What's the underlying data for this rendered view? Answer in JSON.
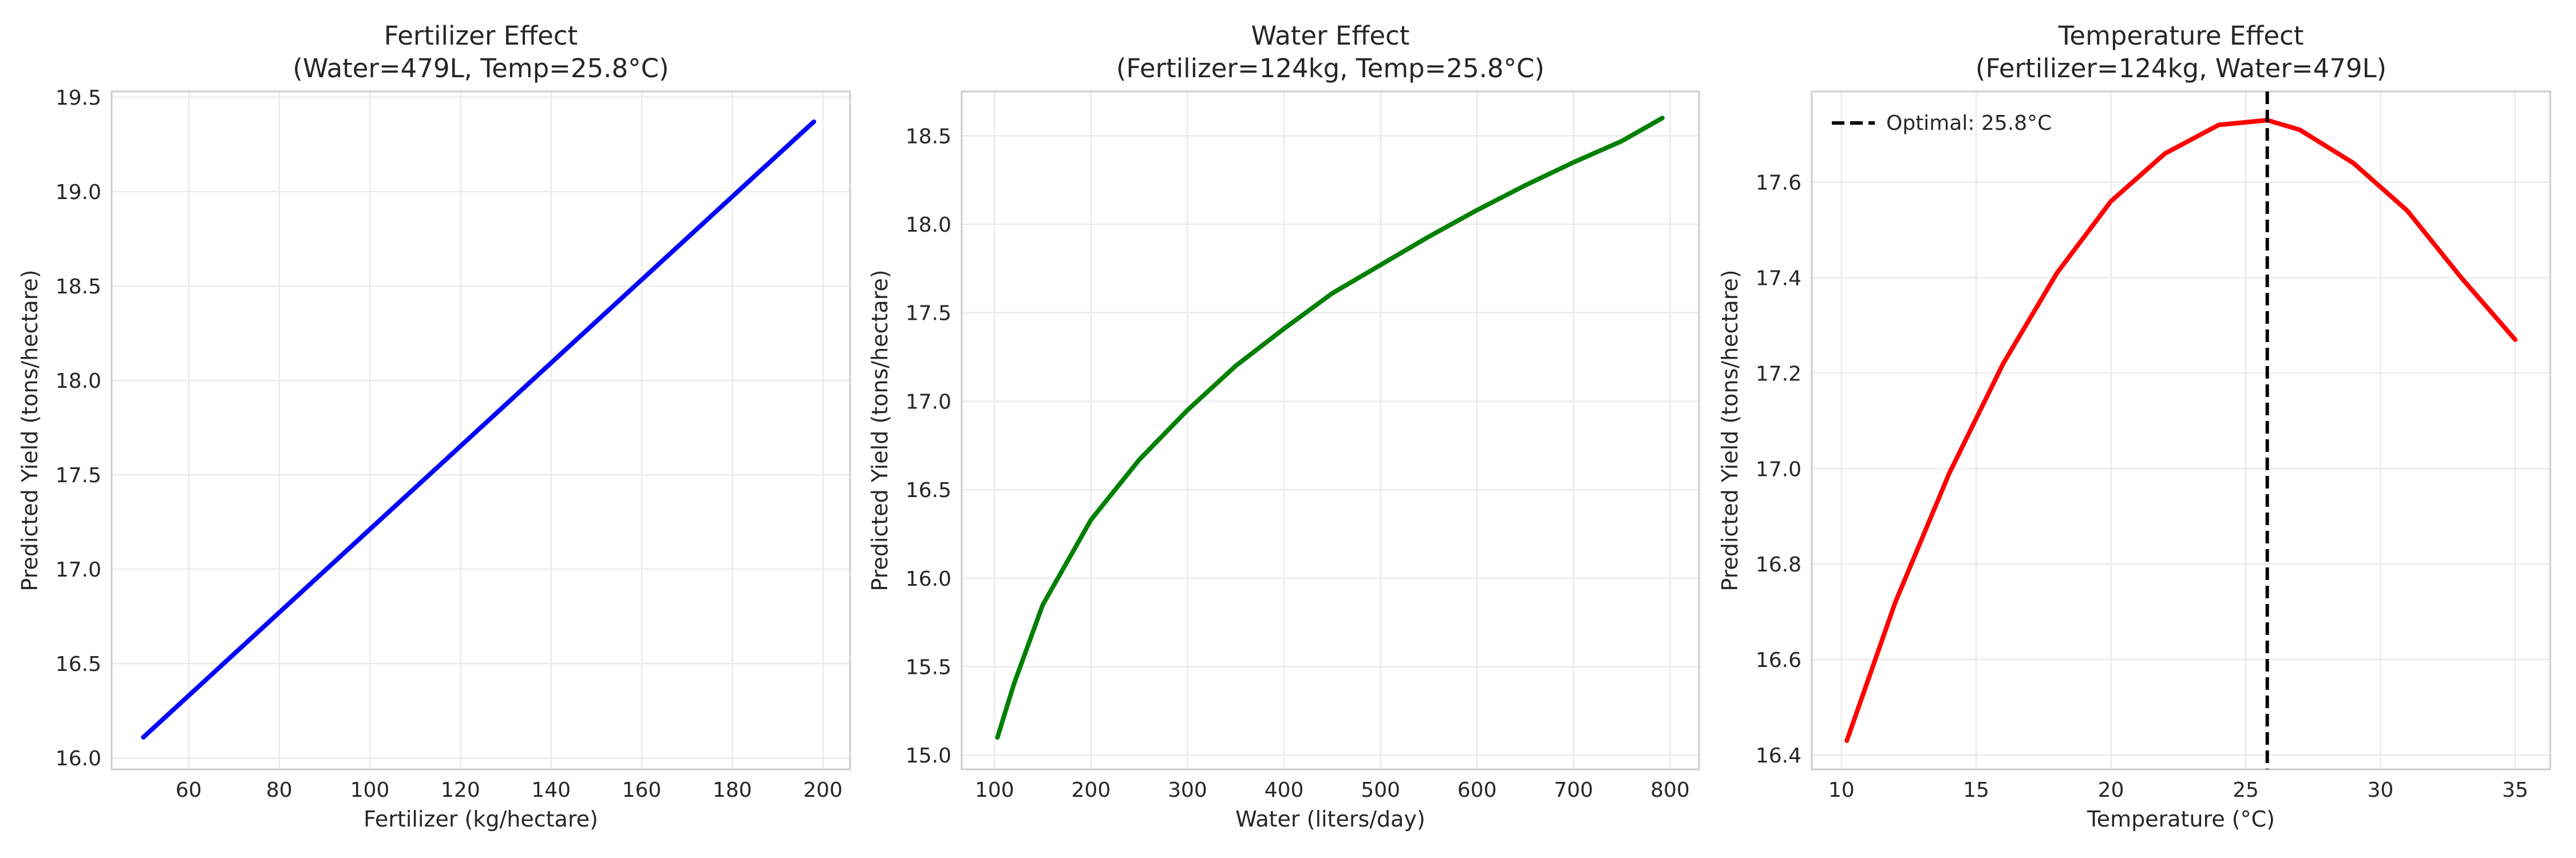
{
  "chart_data": [
    {
      "type": "line",
      "title": "Fertilizer Effect",
      "subtitle": "(Water=479L, Temp=25.8°C)",
      "xlabel": "Fertilizer (kg/hectare)",
      "ylabel": "Predicted Yield (tons/hectare)",
      "xlim": [
        43,
        206
      ],
      "ylim": [
        15.94,
        19.53
      ],
      "xticks": [
        60,
        80,
        100,
        120,
        140,
        160,
        180,
        200
      ],
      "yticks": [
        16.0,
        16.5,
        17.0,
        17.5,
        18.0,
        18.5,
        19.0,
        19.5
      ],
      "xtick_labels": [
        "60",
        "80",
        "100",
        "120",
        "140",
        "160",
        "180",
        "200"
      ],
      "ytick_labels": [
        "16.0",
        "16.5",
        "17.0",
        "17.5",
        "18.0",
        "18.5",
        "19.0",
        "19.5"
      ],
      "grid": true,
      "series": [
        {
          "color": "#0000ff",
          "x": [
            50,
            198
          ],
          "y": [
            16.11,
            19.37
          ]
        }
      ]
    },
    {
      "type": "line",
      "title": "Water Effect",
      "subtitle": "(Fertilizer=124kg, Temp=25.8°C)",
      "xlabel": "Water (liters/day)",
      "ylabel": "Predicted Yield (tons/hectare)",
      "xlim": [
        66,
        830
      ],
      "ylim": [
        14.92,
        18.75
      ],
      "xticks": [
        100,
        200,
        300,
        400,
        500,
        600,
        700,
        800
      ],
      "yticks": [
        15.0,
        15.5,
        16.0,
        16.5,
        17.0,
        17.5,
        18.0,
        18.5
      ],
      "xtick_labels": [
        "100",
        "200",
        "300",
        "400",
        "500",
        "600",
        "700",
        "800"
      ],
      "ytick_labels": [
        "15.0",
        "15.5",
        "16.0",
        "16.5",
        "17.0",
        "17.5",
        "18.0",
        "18.5"
      ],
      "grid": true,
      "series": [
        {
          "color": "#008000",
          "x": [
            103,
            120,
            150,
            200,
            250,
            300,
            350,
            400,
            450,
            500,
            550,
            600,
            650,
            700,
            750,
            792
          ],
          "y": [
            15.1,
            15.4,
            15.85,
            16.33,
            16.67,
            16.95,
            17.2,
            17.41,
            17.61,
            17.77,
            17.93,
            18.08,
            18.22,
            18.35,
            18.47,
            18.6
          ]
        }
      ]
    },
    {
      "type": "line",
      "title": "Temperature Effect",
      "subtitle": "(Fertilizer=124kg, Water=479L)",
      "xlabel": "Temperature (°C)",
      "ylabel": "Predicted Yield (tons/hectare)",
      "xlim": [
        8.9,
        36.3
      ],
      "ylim": [
        16.37,
        17.79
      ],
      "xticks": [
        10,
        15,
        20,
        25,
        30,
        35
      ],
      "yticks": [
        16.4,
        16.6,
        16.8,
        17.0,
        17.2,
        17.4,
        17.6
      ],
      "xtick_labels": [
        "10",
        "15",
        "20",
        "25",
        "30",
        "35"
      ],
      "ytick_labels": [
        "16.4",
        "16.6",
        "16.8",
        "17.0",
        "17.2",
        "17.4",
        "17.6"
      ],
      "grid": true,
      "legend_position": "top-left",
      "series": [
        {
          "color": "#ff0000",
          "x": [
            10.2,
            12,
            14,
            16,
            18,
            20,
            22,
            24,
            25.8,
            27,
            29,
            31,
            33,
            35
          ],
          "y": [
            16.43,
            16.72,
            16.99,
            17.22,
            17.41,
            17.56,
            17.66,
            17.72,
            17.73,
            17.71,
            17.64,
            17.54,
            17.4,
            17.27
          ]
        }
      ],
      "vline": {
        "x": 25.8,
        "label": "Optimal: 25.8°C",
        "color": "#000000",
        "style": "dashed"
      }
    }
  ]
}
